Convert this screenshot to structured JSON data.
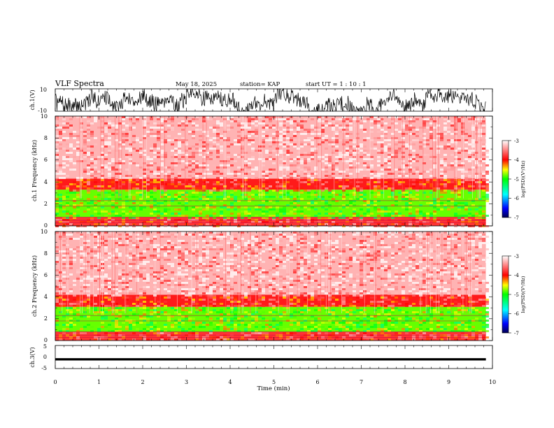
{
  "header": {
    "title": "VLF Spectra",
    "date": "May 18, 2025",
    "station": "station= KAP",
    "start": "start  UT =   1 : 10 : 1"
  },
  "chart_data": [
    {
      "type": "line",
      "panel": "ch1-waveform",
      "ylabel": "ch.1(V)",
      "yticks": [
        "10",
        "-10"
      ],
      "ylim": [
        -10,
        10
      ],
      "xlim": [
        0,
        10
      ],
      "note": "dense noisy waveform, roughly -10 to 10 V, data through ~9.85 min"
    },
    {
      "type": "heatmap",
      "panel": "ch1-spectrogram",
      "ylabel": "ch.1 Frequency (kHz)",
      "yticks": [
        "0",
        "2",
        "4",
        "6",
        "8",
        "10"
      ],
      "ylim": [
        0,
        10
      ],
      "xlim": [
        0,
        10
      ],
      "bands": [
        {
          "from": 0,
          "to": 0.8,
          "level": -3.8
        },
        {
          "from": 0.8,
          "to": 3.3,
          "level": -4.8
        },
        {
          "from": 3.3,
          "to": 4.3,
          "level": -3.9
        },
        {
          "from": 4.3,
          "to": 10,
          "level": -3.3
        }
      ]
    },
    {
      "type": "heatmap",
      "panel": "ch2-spectrogram",
      "ylabel": "ch.2 Frequency (kHz)",
      "yticks": [
        "0",
        "2",
        "4",
        "6",
        "8",
        "10"
      ],
      "ylim": [
        0,
        10
      ],
      "xlim": [
        0,
        10
      ],
      "bands": [
        {
          "from": 0,
          "to": 0.8,
          "level": -3.8
        },
        {
          "from": 0.8,
          "to": 3.1,
          "level": -4.8
        },
        {
          "from": 3.1,
          "to": 4.2,
          "level": -3.9
        },
        {
          "from": 4.2,
          "to": 10,
          "level": -3.3
        }
      ]
    },
    {
      "type": "line",
      "panel": "ch3-waveform",
      "ylabel": "ch.3(V)",
      "yticks": [
        "5",
        "0",
        "-5"
      ],
      "ylim": [
        -5,
        5
      ],
      "xlim": [
        0,
        10
      ],
      "note": "narrow dense band around -1 V"
    }
  ],
  "xaxis": {
    "label": "Time (min)",
    "ticks": [
      "0",
      "1",
      "2",
      "3",
      "4",
      "5",
      "6",
      "7",
      "8",
      "9",
      "10"
    ]
  },
  "colorbar": {
    "label": "log(PSD)(V²/Hz)",
    "ticks": [
      "-3",
      "-4",
      "-5",
      "-6",
      "-7"
    ],
    "range": [
      -7,
      -3
    ]
  }
}
